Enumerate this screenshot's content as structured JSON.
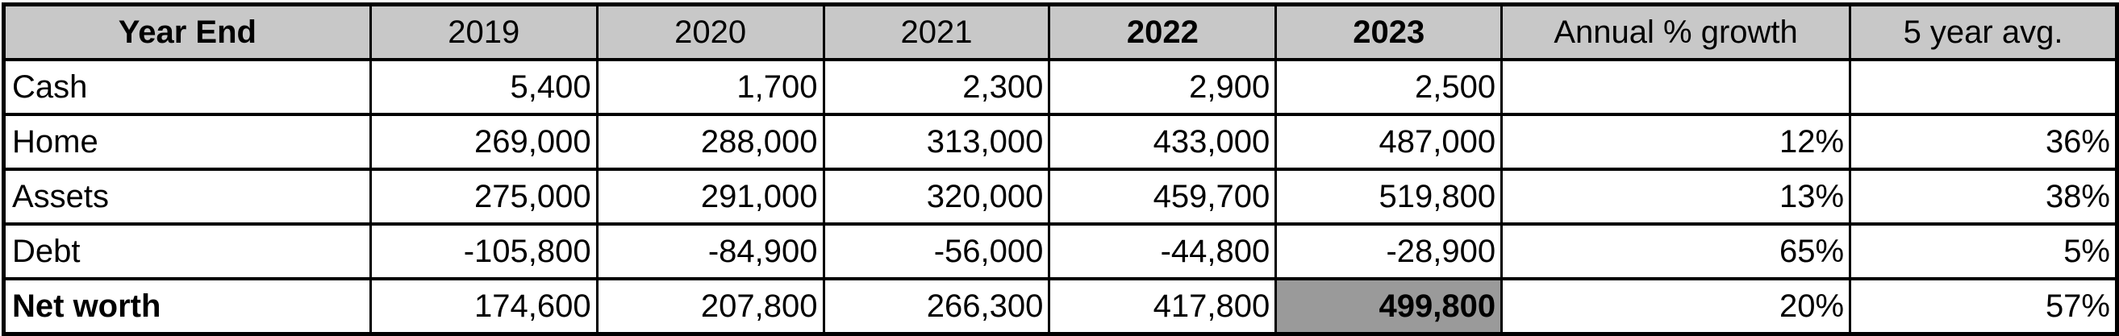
{
  "table": {
    "headers": [
      {
        "label": "Year End",
        "bold": true
      },
      {
        "label": "2019",
        "bold": false
      },
      {
        "label": "2020",
        "bold": false
      },
      {
        "label": "2021",
        "bold": false
      },
      {
        "label": "2022",
        "bold": true
      },
      {
        "label": "2023",
        "bold": true
      },
      {
        "label": "Annual % growth",
        "bold": false
      },
      {
        "label": "5 year avg.",
        "bold": false
      }
    ],
    "rows": [
      {
        "label": "Cash",
        "values": [
          "5,400",
          "1,700",
          "2,300",
          "2,900",
          "2,500"
        ],
        "annual_growth": "",
        "five_year_avg": ""
      },
      {
        "label": "Home",
        "values": [
          "269,000",
          "288,000",
          "313,000",
          "433,000",
          "487,000"
        ],
        "annual_growth": "12%",
        "five_year_avg": "36%"
      },
      {
        "label": "Assets",
        "values": [
          "275,000",
          "291,000",
          "320,000",
          "459,700",
          "519,800"
        ],
        "annual_growth": "13%",
        "five_year_avg": "38%"
      },
      {
        "label": "Debt",
        "values": [
          "-105,800",
          "-84,900",
          "-56,000",
          "-44,800",
          "-28,900"
        ],
        "annual_growth": "65%",
        "five_year_avg": "5%"
      },
      {
        "label": "Net worth",
        "values": [
          "174,600",
          "207,800",
          "266,300",
          "417,800",
          "499,800"
        ],
        "annual_growth": "20%",
        "five_year_avg": "57%"
      }
    ]
  },
  "colors": {
    "header_fill": "#c8c8c8",
    "highlight_fill": "#9a9a9a",
    "grid_lines": "#000000"
  }
}
